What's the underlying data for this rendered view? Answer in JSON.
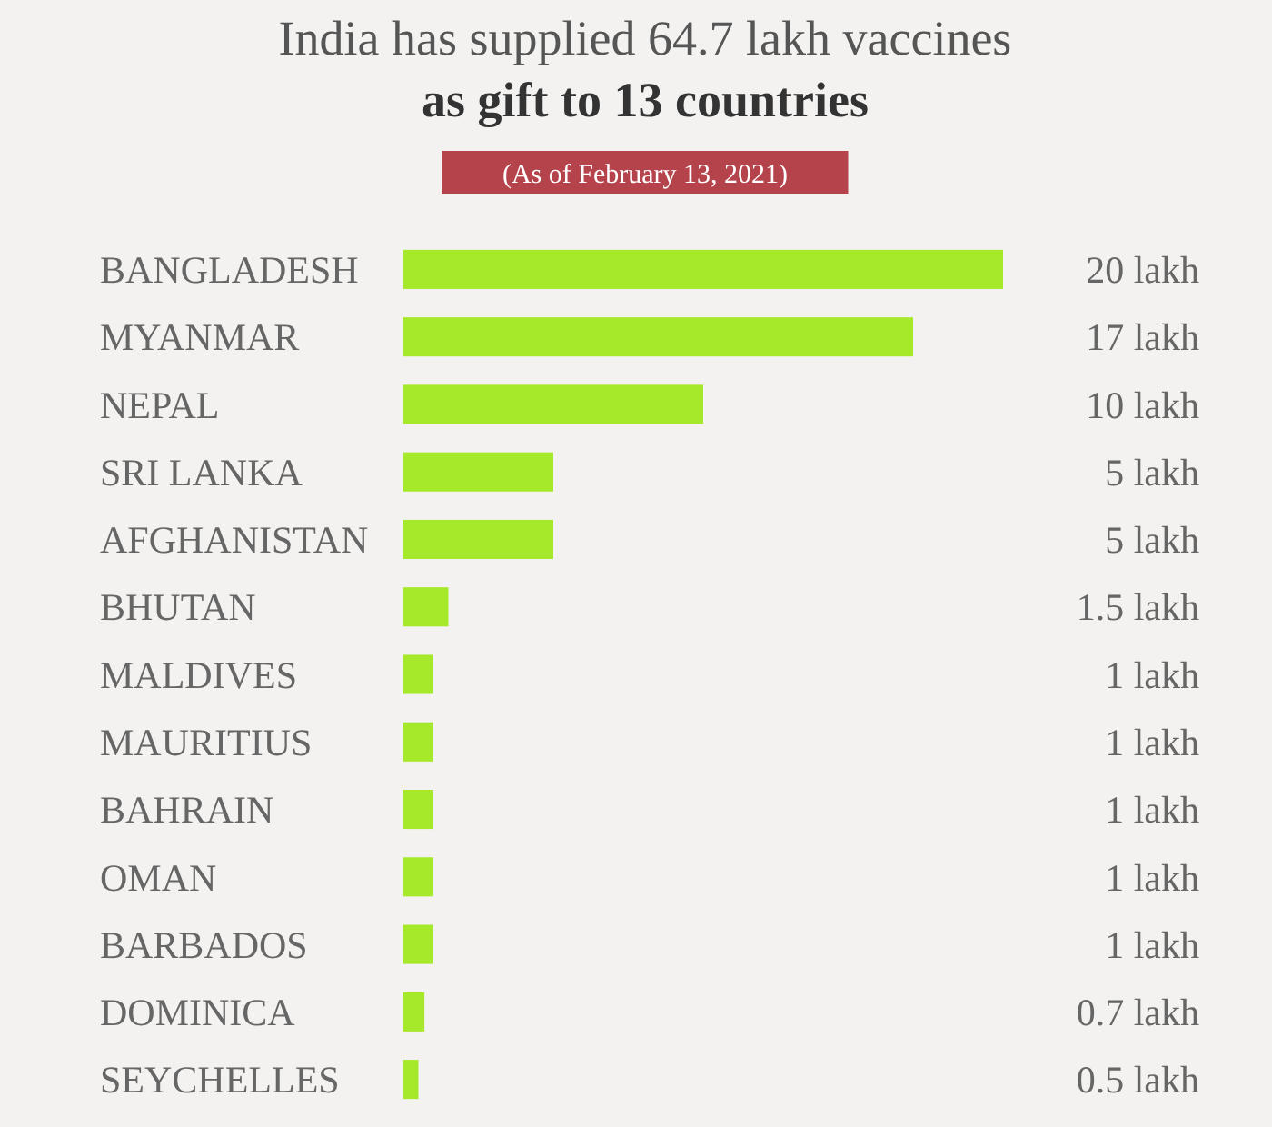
{
  "chart_data": {
    "type": "bar",
    "orientation": "horizontal",
    "title": "India has supplied 64.7 lakh vaccines as gift to 13 countries",
    "subtitle": "(As of February 13, 2021)",
    "categories": [
      "BANGLADESH",
      "MYANMAR",
      "NEPAL",
      "SRI LANKA",
      "AFGHANISTAN",
      "BHUTAN",
      "MALDIVES",
      "MAURITIUS",
      "BAHRAIN",
      "OMAN",
      "BARBADOS",
      "DOMINICA",
      "SEYCHELLES"
    ],
    "values": [
      20,
      17,
      10,
      5,
      5,
      1.5,
      1,
      1,
      1,
      1,
      1,
      0.7,
      0.5
    ],
    "value_labels": [
      "20 lakh",
      "17 lakh",
      "10 lakh",
      "5 lakh",
      "5 lakh",
      "1.5 lakh",
      "1 lakh",
      "1 lakh",
      "1 lakh",
      "1 lakh",
      "1 lakh",
      "0.7 lakh",
      "0.5 lakh"
    ],
    "color": "#a6e82a",
    "xlim": [
      0,
      20
    ],
    "tick_labels": "y"
  }
}
